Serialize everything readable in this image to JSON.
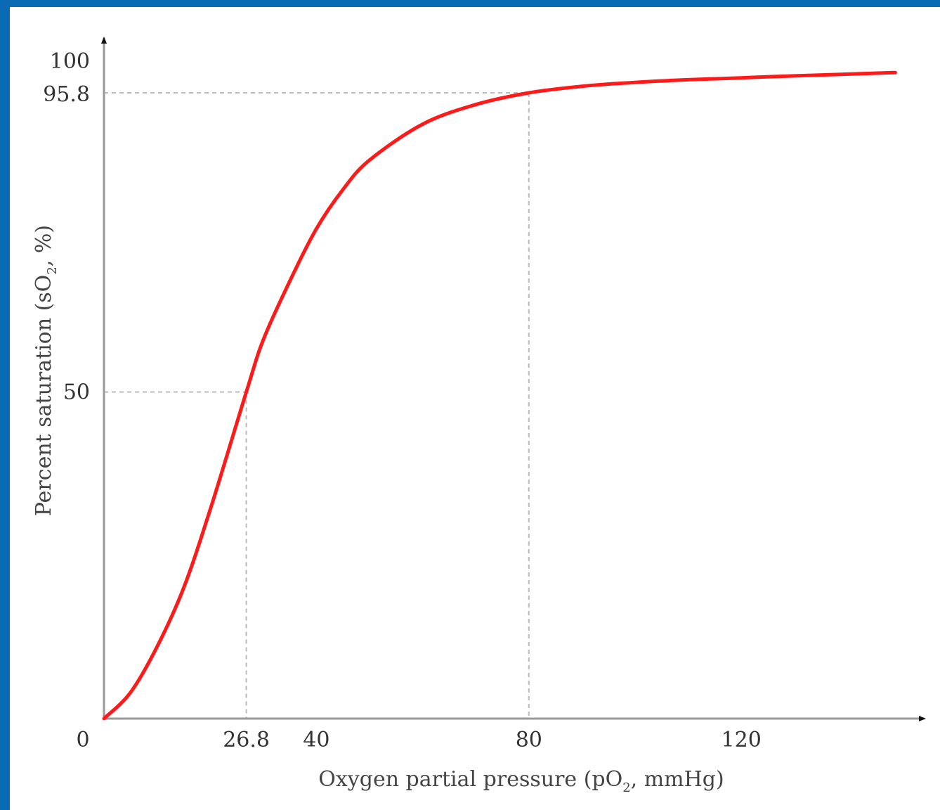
{
  "colors": {
    "frame_border": "#0a6ab4",
    "curve": "#ff1a1a",
    "axis": "#999999",
    "guide": "#bbbbbb"
  },
  "chart_data": {
    "type": "line",
    "title": "",
    "xlabel_main": "Oxygen partial pressure (pO",
    "xlabel_sub": "2",
    "xlabel_tail": ", mmHg)",
    "ylabel_main": "Percent saturation (sO",
    "ylabel_sub": "2",
    "ylabel_tail": ", %)",
    "xlim": [
      0,
      150
    ],
    "ylim": [
      0,
      100
    ],
    "xticks": [
      0,
      26.8,
      40,
      80,
      120
    ],
    "xtick_labels": [
      "0",
      "26.8",
      "40",
      "80",
      "120"
    ],
    "yticks": [
      50,
      95.8,
      100
    ],
    "ytick_labels": [
      "50",
      "95.8",
      "100"
    ],
    "grid": false,
    "reference_lines": [
      {
        "x": 26.8,
        "y": 50
      },
      {
        "x": 80,
        "y": 95.8
      }
    ],
    "series": [
      {
        "x": [
          0,
          5,
          10,
          15,
          20,
          26.8,
          30,
          35,
          40,
          45,
          50,
          60,
          70,
          80,
          90,
          100,
          110,
          120,
          130,
          149
        ],
        "values": [
          0,
          4,
          11,
          20,
          32,
          50,
          58,
          67,
          75,
          81,
          85.5,
          91,
          94,
          95.8,
          96.8,
          97.4,
          97.8,
          98.1,
          98.4,
          98.9
        ]
      }
    ]
  }
}
